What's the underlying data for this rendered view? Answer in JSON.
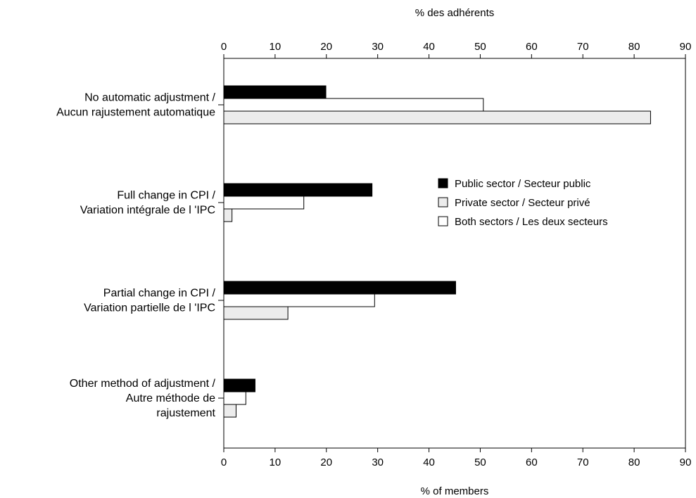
{
  "chart_data": {
    "type": "bar",
    "orientation": "horizontal",
    "title": "",
    "xlabel": "% of members",
    "xlabel_top": "% des adhérents",
    "ylabel": "",
    "xlim": [
      0,
      90
    ],
    "xticks": [
      0,
      10,
      20,
      30,
      40,
      50,
      60,
      70,
      80,
      90
    ],
    "grid": false,
    "legend_position": "right",
    "categories": [
      [
        "No automatic adjustment /",
        "Aucun rajustement automatique"
      ],
      [
        "Full change in CPI /",
        "Variation intégrale  de l 'IPC"
      ],
      [
        "Partial change in CPI /",
        "Variation partielle  de l 'IPC"
      ],
      [
        "Other method of adjustment /",
        "Autre méthode de",
        "rajustement"
      ]
    ],
    "series": [
      {
        "name": "Public sector / Secteur public",
        "color": "#000000",
        "values": [
          19.9,
          28.9,
          45.2,
          6.1
        ]
      },
      {
        "name": "Both sectors / Les deux secteurs",
        "color": "#ffffff",
        "values": [
          50.6,
          15.6,
          29.4,
          4.3
        ]
      },
      {
        "name": "Private sector / Secteur privé",
        "color": "#ececec",
        "values": [
          83.2,
          1.6,
          12.5,
          2.4
        ]
      }
    ],
    "legend_order": [
      0,
      2,
      1
    ]
  }
}
